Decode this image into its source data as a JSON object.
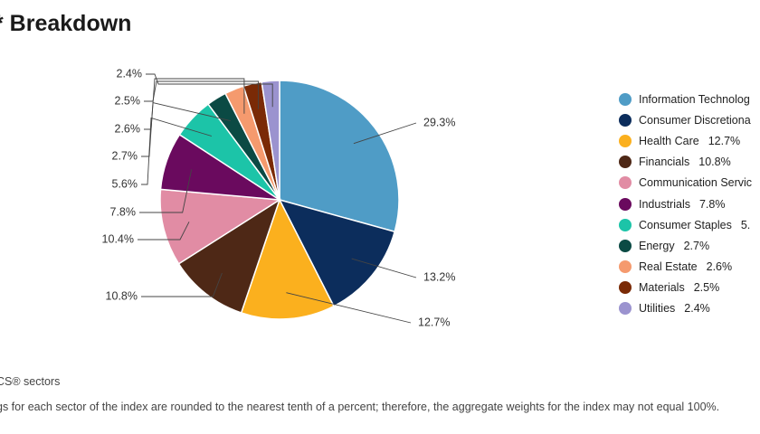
{
  "header": {
    "title": "* Breakdown"
  },
  "footnotes": {
    "line1": "CS® sectors",
    "line2": "gs for each sector of the index are rounded to the nearest tenth of a percent; therefore, the aggregate weights for the index may not equal 100%."
  },
  "chart_data": {
    "type": "pie",
    "unit": "%",
    "legend_position": "right",
    "slices": [
      {
        "legend_label": "Information Technolog",
        "value_label": "29.3%",
        "value": 29.3,
        "color": "#4f9cc6"
      },
      {
        "legend_label": "Consumer Discretiona",
        "value_label": "13.2%",
        "value": 13.2,
        "color": "#0c2d5c"
      },
      {
        "legend_label": "Health Care",
        "value_label": "12.7%",
        "value": 12.7,
        "color": "#fbb01e"
      },
      {
        "legend_label": "Financials",
        "value_label": "10.8%",
        "value": 10.8,
        "color": "#4e2816"
      },
      {
        "legend_label": "Communication Servic",
        "value_label": "10.4%",
        "value": 10.4,
        "color": "#e18ca4"
      },
      {
        "legend_label": "Industrials",
        "value_label": "7.8%",
        "value": 7.8,
        "color": "#6a0a5e"
      },
      {
        "legend_label": "Consumer Staples",
        "value_label": "5.6%",
        "value": 5.6,
        "color": "#1cc4a8"
      },
      {
        "legend_label": "Energy",
        "value_label": "2.7%",
        "value": 2.7,
        "color": "#0b4a44"
      },
      {
        "legend_label": "Real Estate",
        "value_label": "2.6%",
        "value": 2.6,
        "color": "#f59a6e"
      },
      {
        "legend_label": "Materials",
        "value_label": "2.5%",
        "value": 2.5,
        "color": "#7a2a06"
      },
      {
        "legend_label": "Utilities",
        "value_label": "2.4%",
        "value": 2.4,
        "color": "#9b93cf"
      }
    ],
    "legend_values": [
      "",
      "",
      "12.7%",
      "10.8%",
      "",
      "7.8%",
      "5.",
      "2.7%",
      "2.6%",
      "2.5%",
      "2.4%"
    ]
  }
}
